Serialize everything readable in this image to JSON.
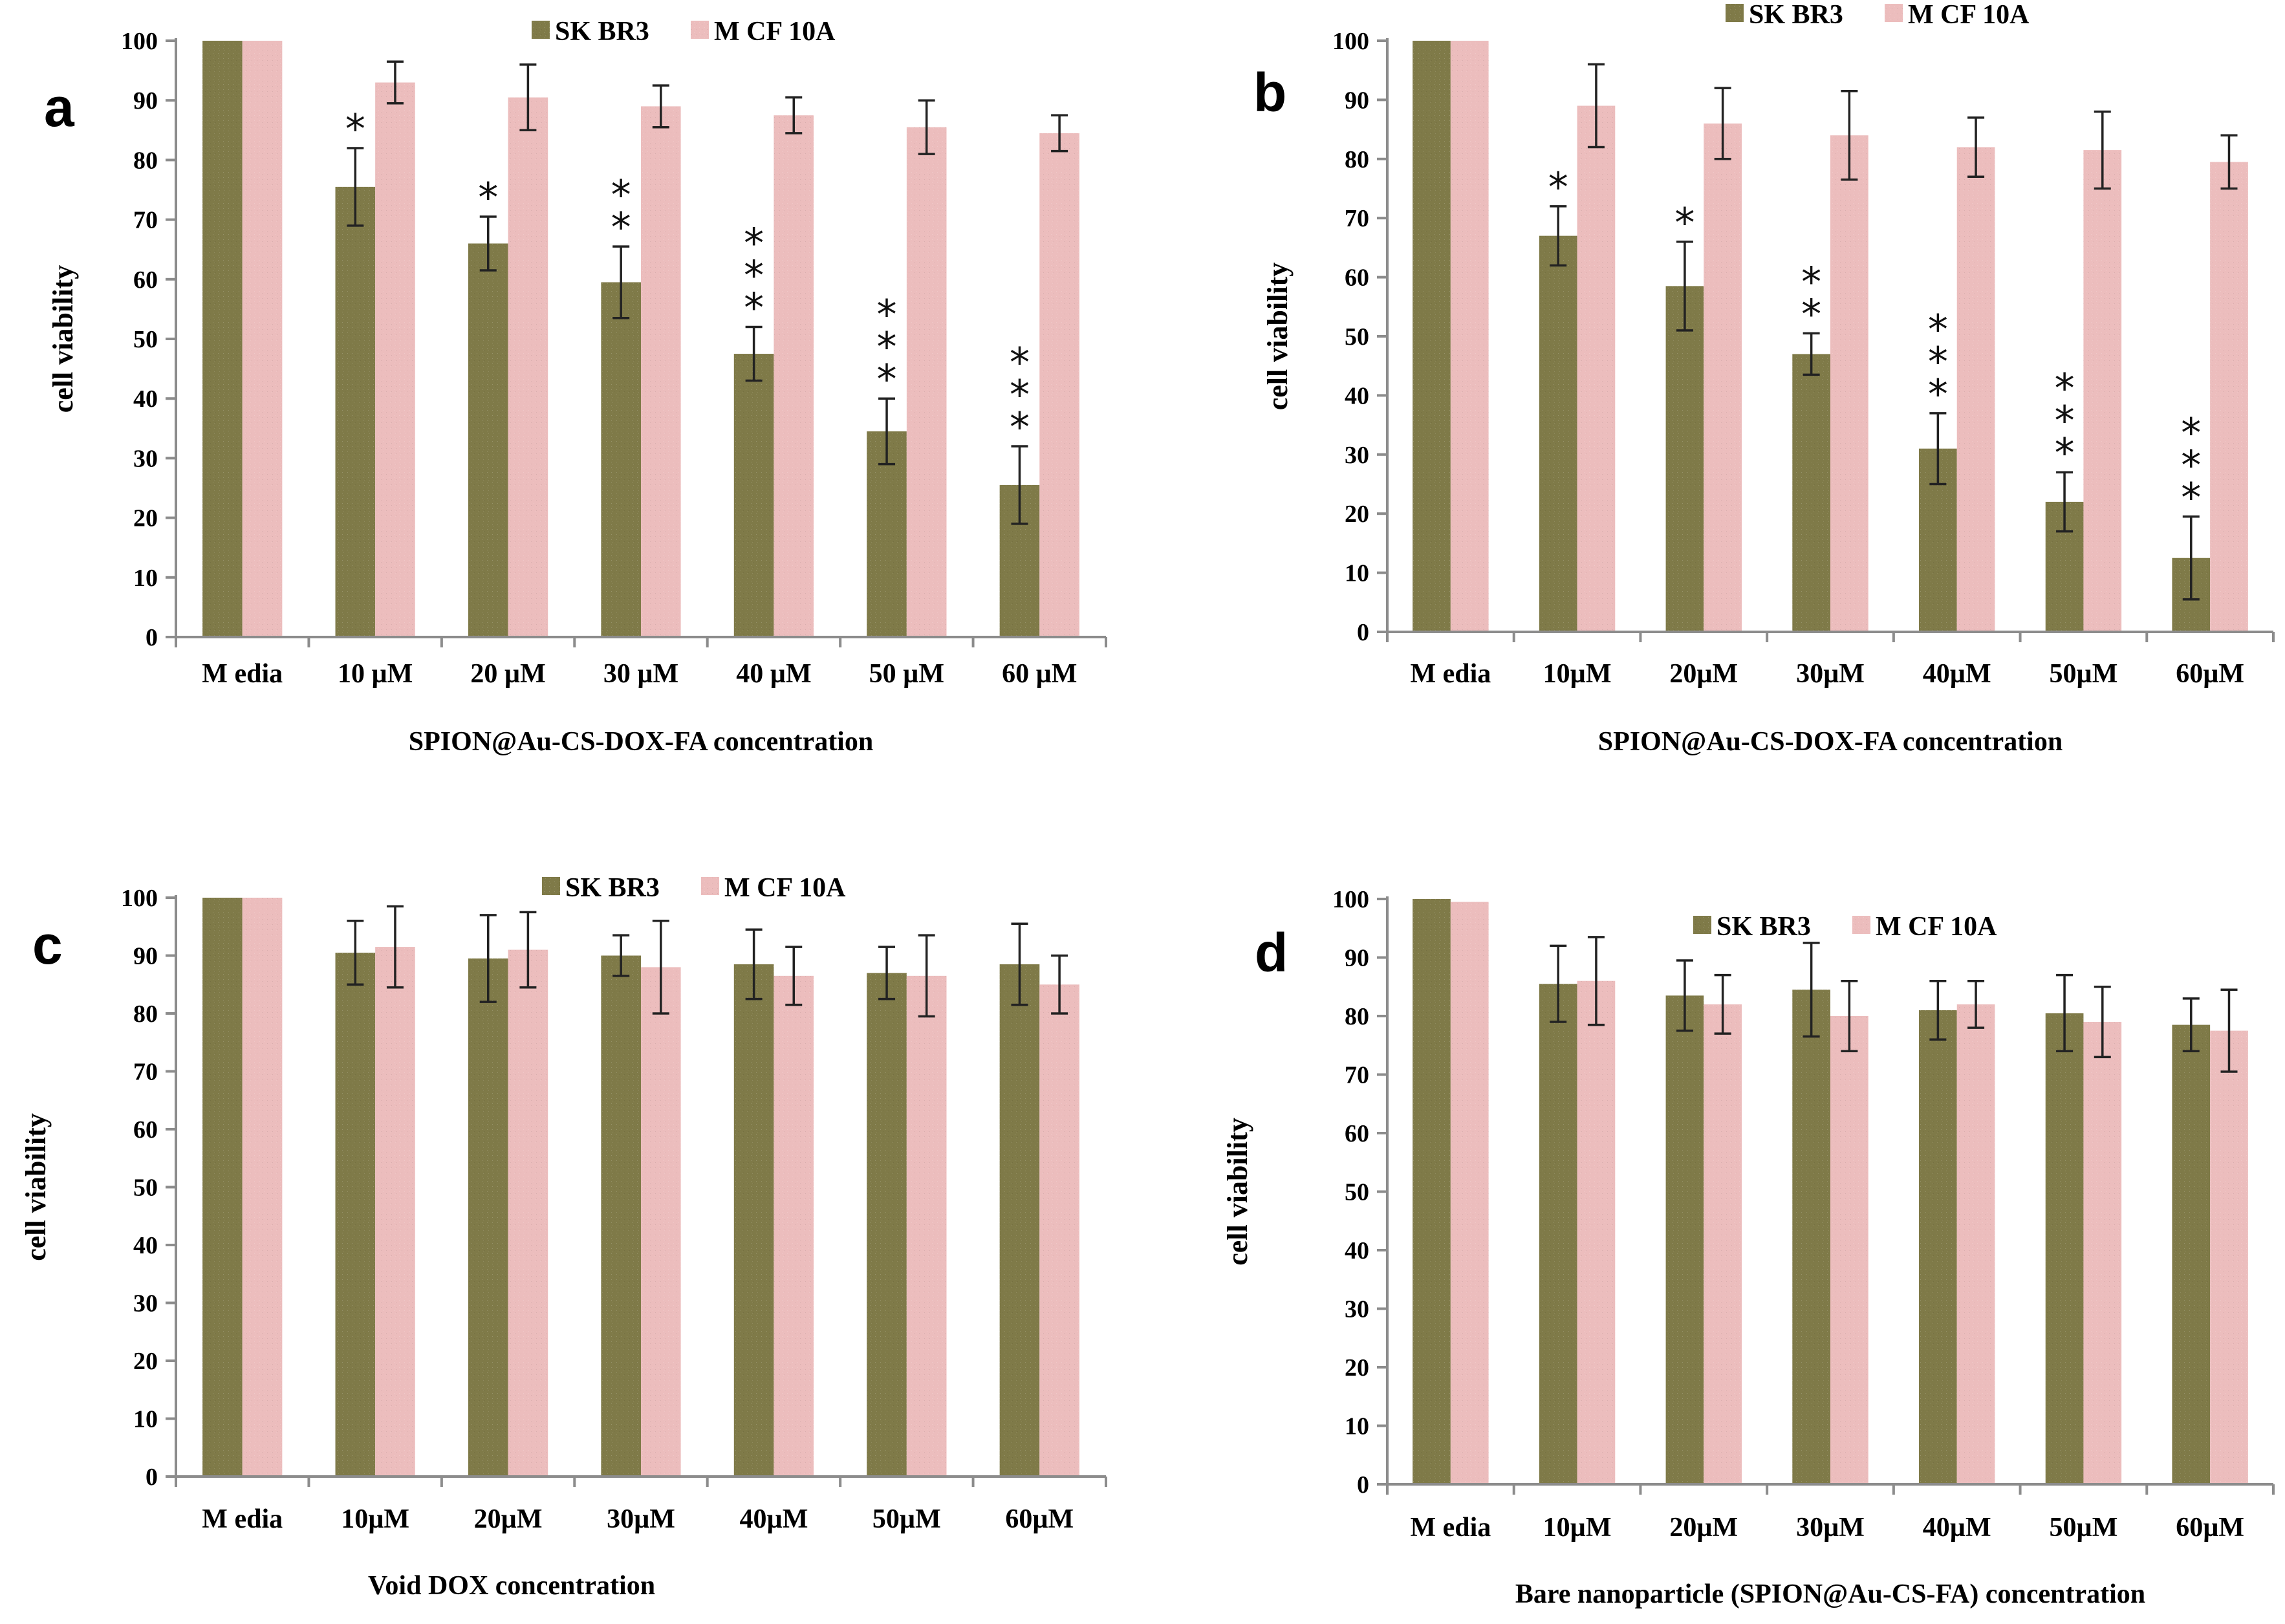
{
  "figure": {
    "colors": {
      "SKBR3": "#7f7a48",
      "MCF 10A": "#ecbdbd"
    },
    "panels": [
      {
        "letter": "a",
        "legend_position": "top-center",
        "chart_data": {
          "type": "bar",
          "title": "",
          "xlabel": "SPION@Au-CS-DOX-FA concentration",
          "ylabel": "cell viability",
          "ylim": [
            0,
            100
          ],
          "yticks": [
            "0",
            "10",
            "20",
            "30",
            "40",
            "50",
            "60",
            "70",
            "80",
            "90",
            "100"
          ],
          "categories": [
            "M edia",
            "10 µM",
            "20 µM",
            "30 µM",
            "40 µM",
            "50 µM",
            "60 µM"
          ],
          "series": [
            {
              "name": "SK BR3",
              "values": [
                100,
                75.5,
                66,
                59.5,
                47.5,
                34.5,
                25.5
              ],
              "errors": [
                0,
                6.5,
                4.5,
                6,
                4.5,
                5.5,
                6.5
              ]
            },
            {
              "name": "M CF 10A",
              "values": [
                100,
                93,
                90.5,
                89,
                87.5,
                85.5,
                84.5
              ],
              "errors": [
                0,
                3.5,
                5.5,
                3.5,
                3,
                4.5,
                3
              ]
            }
          ],
          "annotations": [
            "",
            "*",
            "*",
            "**",
            "***",
            "***",
            "***"
          ]
        }
      },
      {
        "letter": "b",
        "legend_position": "top-center",
        "chart_data": {
          "type": "bar",
          "title": "",
          "xlabel": "SPION@Au-CS-DOX-FA concentration",
          "ylabel": "cell viability",
          "ylim": [
            0,
            100
          ],
          "yticks": [
            "0",
            "10",
            "20",
            "30",
            "40",
            "50",
            "60",
            "70",
            "80",
            "90",
            "100"
          ],
          "categories": [
            "M edia",
            "10µM",
            "20µM",
            "30µM",
            "40µM",
            "50µM",
            "60µM"
          ],
          "series": [
            {
              "name": "SK BR3",
              "values": [
                100,
                67,
                58.5,
                47,
                31,
                22,
                12.5
              ],
              "errors": [
                0,
                5,
                7.5,
                3.5,
                6,
                5,
                7
              ]
            },
            {
              "name": "M CF 10A",
              "values": [
                100,
                89,
                86,
                84,
                82,
                81.5,
                79.5
              ],
              "errors": [
                0,
                7,
                6,
                7.5,
                5,
                6.5,
                4.5
              ]
            }
          ],
          "annotations": [
            "",
            "*",
            "*",
            "**",
            "***",
            "***",
            "***"
          ]
        }
      },
      {
        "letter": "c",
        "legend_position": "top-center",
        "chart_data": {
          "type": "bar",
          "title": "",
          "xlabel": "Void DOX concentration",
          "ylabel": "cell viability",
          "ylim": [
            0,
            100
          ],
          "yticks": [
            "0",
            "10",
            "20",
            "30",
            "40",
            "50",
            "60",
            "70",
            "80",
            "90",
            "100"
          ],
          "categories": [
            "M edia",
            "10µM",
            "20µM",
            "30µM",
            "40µM",
            "50µM",
            "60µM"
          ],
          "series": [
            {
              "name": "SK BR3",
              "values": [
                100,
                90.5,
                89.5,
                90,
                88.5,
                87,
                88.5
              ],
              "errors": [
                0,
                5.5,
                7.5,
                3.5,
                6,
                4.5,
                7
              ]
            },
            {
              "name": "M CF 10A",
              "values": [
                100,
                91.5,
                91,
                88,
                86.5,
                86.5,
                85
              ],
              "errors": [
                0,
                7,
                6.5,
                8,
                5,
                7,
                5
              ]
            }
          ],
          "annotations": [
            "",
            "",
            "",
            "",
            "",
            "",
            ""
          ]
        }
      },
      {
        "letter": "d",
        "legend_position": "top-center",
        "chart_data": {
          "type": "bar",
          "title": "",
          "xlabel": "Bare nanoparticle (SPION@Au-CS-FA) concentration",
          "ylabel": "cell viability",
          "ylim": [
            0,
            100
          ],
          "yticks": [
            "0",
            "10",
            "20",
            "30",
            "40",
            "50",
            "60",
            "70",
            "80",
            "90",
            "100"
          ],
          "categories": [
            "M edia",
            "10µM",
            "20µM",
            "30µM",
            "40µM",
            "50µM",
            "60µM"
          ],
          "series": [
            {
              "name": "SK BR3",
              "values": [
                100,
                85.5,
                83.5,
                84.5,
                81,
                80.5,
                78.5
              ],
              "errors": [
                0,
                6.5,
                6,
                8,
                5,
                6.5,
                4.5
              ]
            },
            {
              "name": "M CF 10A",
              "values": [
                99.5,
                86,
                82,
                80,
                82,
                79,
                77.5
              ],
              "errors": [
                0,
                7.5,
                5,
                6,
                4,
                6,
                7
              ]
            }
          ],
          "annotations": [
            "",
            "",
            "",
            "",
            "",
            "",
            ""
          ]
        }
      }
    ]
  }
}
